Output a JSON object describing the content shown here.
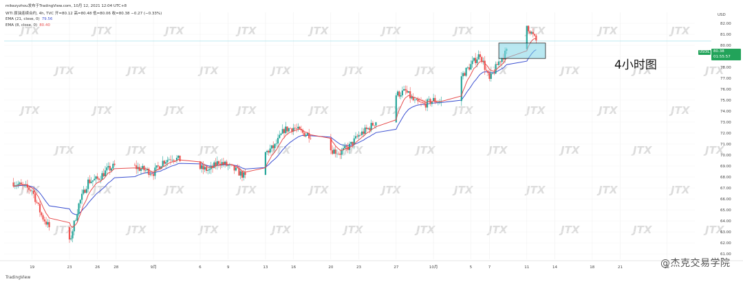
{
  "header": {
    "published": "mikezyzhou发布于TradingView.com, 10月 12, 2021 12:04 UTC+8",
    "symbol_line": "WTI 原油连续合约, 4h, TVC  开=80.12  高=80.48  低=80.06  收=80.38  −0.27 (−0.33%)"
  },
  "legend": [
    {
      "label": "EMA (21, close, 0)",
      "value": "79.56",
      "color": "#3a4fd1"
    },
    {
      "label": "EMA (8, close, 0)",
      "value": "80.40",
      "color": "#e74c4c"
    }
  ],
  "annotation": "4小时图",
  "price_tag": {
    "symbol": "USOIL",
    "price": "80.38",
    "countdown": "01:55:57"
  },
  "branding": {
    "tradingview": "TradingView",
    "watermark": "JTX",
    "corner_mark": "@杰克交易学院"
  },
  "colors": {
    "up": "#26a69a",
    "down": "#ef5350",
    "ema_fast": "#e74c4c",
    "ema_slow": "#3a4fd1",
    "zone": "#7fd6e6",
    "bg": "#ffffff"
  },
  "chart_data": {
    "type": "candlestick",
    "title": "WTI 原油连续合约, 4h",
    "yaxis_unit": "USD",
    "ylim": [
      60.5,
      83.0
    ],
    "y_ticks": [
      61,
      62,
      63,
      64,
      65,
      66,
      67,
      68,
      69,
      70,
      71,
      72,
      73,
      74,
      75,
      76,
      77,
      78,
      79,
      80,
      81,
      82
    ],
    "x_ticks": [
      "19",
      "23",
      "26",
      "28",
      "9月",
      "6",
      "9",
      "13",
      "16",
      "20",
      "23",
      "27",
      "10月",
      "5",
      "7",
      "11",
      "14",
      "18",
      "21",
      "26"
    ],
    "x_tick_dates": [
      "2021-08-19",
      "2021-08-23",
      "2021-08-26",
      "2021-08-28",
      "2021-09-01",
      "2021-09-06",
      "2021-09-09",
      "2021-09-13",
      "2021-09-16",
      "2021-09-20",
      "2021-09-23",
      "2021-09-27",
      "2021-10-01",
      "2021-10-05",
      "2021-10-07",
      "2021-10-11",
      "2021-10-14",
      "2021-10-18",
      "2021-10-21",
      "2021-10-26"
    ],
    "price_path": [
      [
        "2021-08-17",
        67.5
      ],
      [
        "2021-08-19",
        66.8
      ],
      [
        "2021-08-20",
        64.5
      ],
      [
        "2021-08-21",
        63.2
      ],
      [
        "2021-08-22",
        62.2
      ],
      [
        "2021-08-23",
        62.0
      ],
      [
        "2021-08-24",
        65.5
      ],
      [
        "2021-08-25",
        67.6
      ],
      [
        "2021-08-26",
        67.8
      ],
      [
        "2021-08-27",
        68.6
      ],
      [
        "2021-08-28",
        69.1
      ],
      [
        "2021-08-30",
        68.9
      ],
      [
        "2021-09-01",
        68.4
      ],
      [
        "2021-09-02",
        69.4
      ],
      [
        "2021-09-03",
        69.8
      ],
      [
        "2021-09-05",
        69.2
      ],
      [
        "2021-09-06",
        68.8
      ],
      [
        "2021-09-07",
        68.6
      ],
      [
        "2021-09-08",
        69.4
      ],
      [
        "2021-09-09",
        69.0
      ],
      [
        "2021-09-10",
        68.5
      ],
      [
        "2021-09-11",
        67.9
      ],
      [
        "2021-09-12",
        69.6
      ],
      [
        "2021-09-13",
        70.2
      ],
      [
        "2021-09-14",
        70.8
      ],
      [
        "2021-09-15",
        72.3
      ],
      [
        "2021-09-16",
        72.5
      ],
      [
        "2021-09-17",
        72.0
      ],
      [
        "2021-09-18",
        71.8
      ],
      [
        "2021-09-19",
        71.3
      ],
      [
        "2021-09-20",
        70.5
      ],
      [
        "2021-09-21",
        70.2
      ],
      [
        "2021-09-22",
        70.8
      ],
      [
        "2021-09-23",
        71.8
      ],
      [
        "2021-09-24",
        72.4
      ],
      [
        "2021-09-25",
        73.2
      ],
      [
        "2021-09-26",
        74.0
      ],
      [
        "2021-09-27",
        75.5
      ],
      [
        "2021-09-28",
        75.8
      ],
      [
        "2021-09-29",
        74.8
      ],
      [
        "2021-09-30",
        74.6
      ],
      [
        "2021-10-01",
        75.0
      ],
      [
        "2021-10-02",
        74.8
      ],
      [
        "2021-10-03",
        75.2
      ],
      [
        "2021-10-04",
        77.2
      ],
      [
        "2021-10-05",
        78.2
      ],
      [
        "2021-10-06",
        79.2
      ],
      [
        "2021-10-07",
        76.8
      ],
      [
        "2021-10-08",
        78.5
      ],
      [
        "2021-10-09",
        79.6
      ],
      [
        "2021-10-10",
        80.0
      ],
      [
        "2021-10-11",
        81.8
      ],
      [
        "2021-10-12",
        80.4
      ]
    ],
    "series": [
      {
        "name": "EMA (21, close, 0)",
        "last": 79.56
      },
      {
        "name": "EMA (8, close, 0)",
        "last": 80.4
      }
    ],
    "last_close": 80.38,
    "zone": {
      "x_start": "2021-10-08",
      "x_end": "2021-10-13",
      "y_low": 78.8,
      "y_high": 80.2,
      "label": "4小时图"
    },
    "grid": true
  }
}
